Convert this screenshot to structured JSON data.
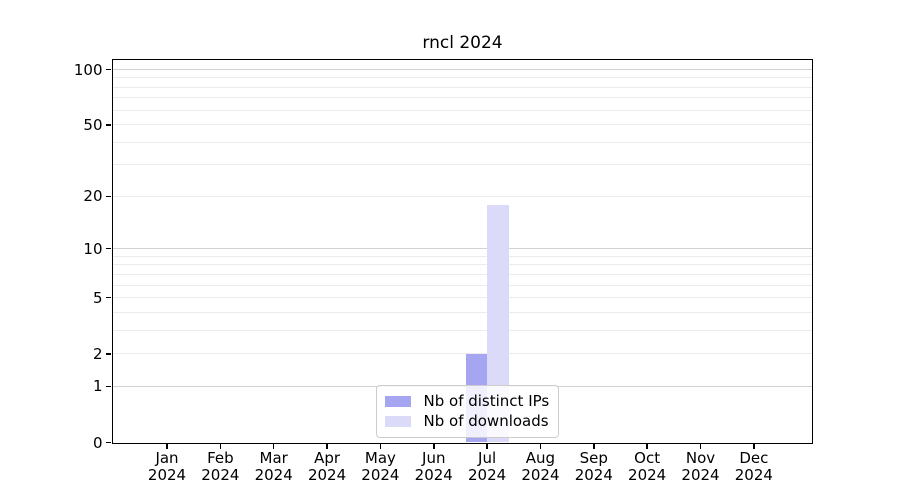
{
  "chart_data": {
    "type": "bar",
    "title": "rncl 2024",
    "categories": [
      {
        "month": "Jan",
        "year": "2024"
      },
      {
        "month": "Feb",
        "year": "2024"
      },
      {
        "month": "Mar",
        "year": "2024"
      },
      {
        "month": "Apr",
        "year": "2024"
      },
      {
        "month": "May",
        "year": "2024"
      },
      {
        "month": "Jun",
        "year": "2024"
      },
      {
        "month": "Jul",
        "year": "2024"
      },
      {
        "month": "Aug",
        "year": "2024"
      },
      {
        "month": "Sep",
        "year": "2024"
      },
      {
        "month": "Oct",
        "year": "2024"
      },
      {
        "month": "Nov",
        "year": "2024"
      },
      {
        "month": "Dec",
        "year": "2024"
      }
    ],
    "series": [
      {
        "name": "Nb of distinct IPs",
        "color": "#a5a5f1",
        "values": [
          0,
          0,
          0,
          0,
          0,
          0,
          2,
          0,
          0,
          0,
          0,
          0
        ]
      },
      {
        "name": "Nb of downloads",
        "color": "#dbdbf9",
        "values": [
          0,
          0,
          0,
          0,
          0,
          0,
          18,
          0,
          0,
          0,
          0,
          0
        ]
      }
    ],
    "y_axis": {
      "scale": "log1p",
      "ticks": [
        0,
        1,
        2,
        5,
        10,
        20,
        50,
        100
      ],
      "ylim": [
        0,
        112
      ]
    },
    "grid": {
      "major_values": [
        1,
        10,
        100
      ],
      "minor_values": [
        2,
        3,
        4,
        5,
        6,
        7,
        8,
        9,
        20,
        30,
        40,
        50,
        60,
        70,
        80,
        90
      ],
      "major_color": "#d2d2d2",
      "minor_color": "#ebebeb"
    },
    "legend": {
      "position": "lower center"
    },
    "frame_color": "#000000"
  }
}
